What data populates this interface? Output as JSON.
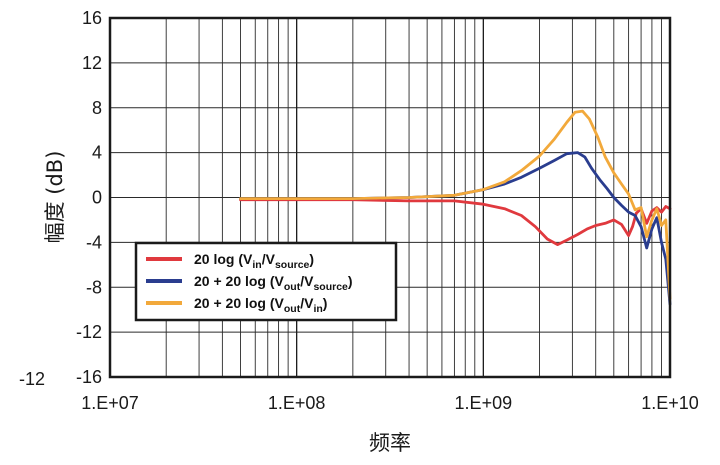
{
  "chart_data": {
    "type": "line",
    "xlabel": "频率",
    "ylabel": "幅度 (dB)",
    "x_scale": "log",
    "xlim": [
      10000000,
      10000000000
    ],
    "ylim": [
      -16,
      16
    ],
    "x_ticks": [
      10000000,
      100000000,
      1000000000,
      10000000000
    ],
    "x_tick_labels": [
      "1.E+07",
      "1.E+08",
      "1.E+09",
      "1.E+10"
    ],
    "y_ticks": [
      16,
      12,
      8,
      4,
      0,
      -4,
      -8,
      -12,
      -16
    ],
    "y_tick_labels": [
      "16",
      "12",
      "8",
      "4",
      "0",
      "-4",
      "-8",
      "-12",
      "-16"
    ],
    "extra_left_label": "-12",
    "grid": true,
    "legend_position": "lower-left",
    "series": [
      {
        "name": "20 log (Vin/Vsource)",
        "legend": {
          "main": "20 log (V",
          "s1": "in",
          "mid": "/V",
          "s2": "source",
          "end": ")"
        },
        "color": "#e0393e",
        "x": [
          50000000,
          100000000,
          200000000,
          400000000,
          700000000,
          1000000000,
          1300000000,
          1600000000,
          1900000000,
          2200000000,
          2500000000,
          2800000000,
          3200000000,
          3600000000,
          4000000000,
          4500000000,
          5000000000,
          5500000000,
          6000000000,
          6300000000,
          6600000000,
          7000000000,
          7500000000,
          8000000000,
          8500000000,
          9000000000,
          9500000000,
          10000000000
        ],
        "y": [
          -0.2,
          -0.2,
          -0.2,
          -0.3,
          -0.3,
          -0.6,
          -1.0,
          -1.6,
          -2.6,
          -3.7,
          -4.2,
          -3.8,
          -3.3,
          -2.8,
          -2.5,
          -2.3,
          -2.0,
          -2.4,
          -3.4,
          -2.6,
          -1.4,
          -1.0,
          -2.3,
          -1.2,
          -0.9,
          -1.3,
          -0.8,
          -1.0
        ]
      },
      {
        "name": "20 + 20 log (Vout/Vsource)",
        "legend": {
          "main": "20 + 20 log (V",
          "s1": "out",
          "mid": "/V",
          "s2": "source",
          "end": ")"
        },
        "color": "#2a3d8f",
        "x": [
          50000000,
          100000000,
          200000000,
          400000000,
          700000000,
          1000000000,
          1300000000,
          1600000000,
          2000000000,
          2400000000,
          2800000000,
          3200000000,
          3500000000,
          3800000000,
          4200000000,
          4600000000,
          5000000000,
          5500000000,
          6000000000,
          6500000000,
          7000000000,
          7500000000,
          8000000000,
          8500000000,
          9000000000,
          9500000000,
          10000000000
        ],
        "y": [
          -0.1,
          -0.1,
          -0.1,
          0.0,
          0.2,
          0.7,
          1.2,
          1.8,
          2.6,
          3.3,
          3.9,
          4.0,
          3.6,
          2.6,
          1.6,
          0.8,
          0.0,
          -0.7,
          -1.3,
          -1.6,
          -2.6,
          -4.5,
          -2.8,
          -1.8,
          -4.0,
          -5.5,
          -9.5
        ]
      },
      {
        "name": "20 + 20 log (Vout/Vin)",
        "legend": {
          "main": "20 + 20 log (V",
          "s1": "out",
          "mid": "/V",
          "s2": "in",
          "end": ")"
        },
        "color": "#f2a93b",
        "x": [
          50000000,
          100000000,
          200000000,
          400000000,
          700000000,
          1000000000,
          1300000000,
          1600000000,
          2000000000,
          2400000000,
          2800000000,
          3100000000,
          3400000000,
          3700000000,
          4100000000,
          4500000000,
          5000000000,
          5500000000,
          6000000000,
          6500000000,
          7000000000,
          7500000000,
          8000000000,
          8500000000,
          9000000000,
          9500000000,
          10000000000
        ],
        "y": [
          -0.1,
          -0.1,
          -0.1,
          0.0,
          0.2,
          0.7,
          1.4,
          2.4,
          3.7,
          5.2,
          6.7,
          7.6,
          7.7,
          7.0,
          5.4,
          3.6,
          2.2,
          1.2,
          0.3,
          -1.1,
          -0.9,
          -3.5,
          -2.0,
          -1.0,
          -2.5,
          -2.0,
          -9.0
        ]
      }
    ]
  }
}
